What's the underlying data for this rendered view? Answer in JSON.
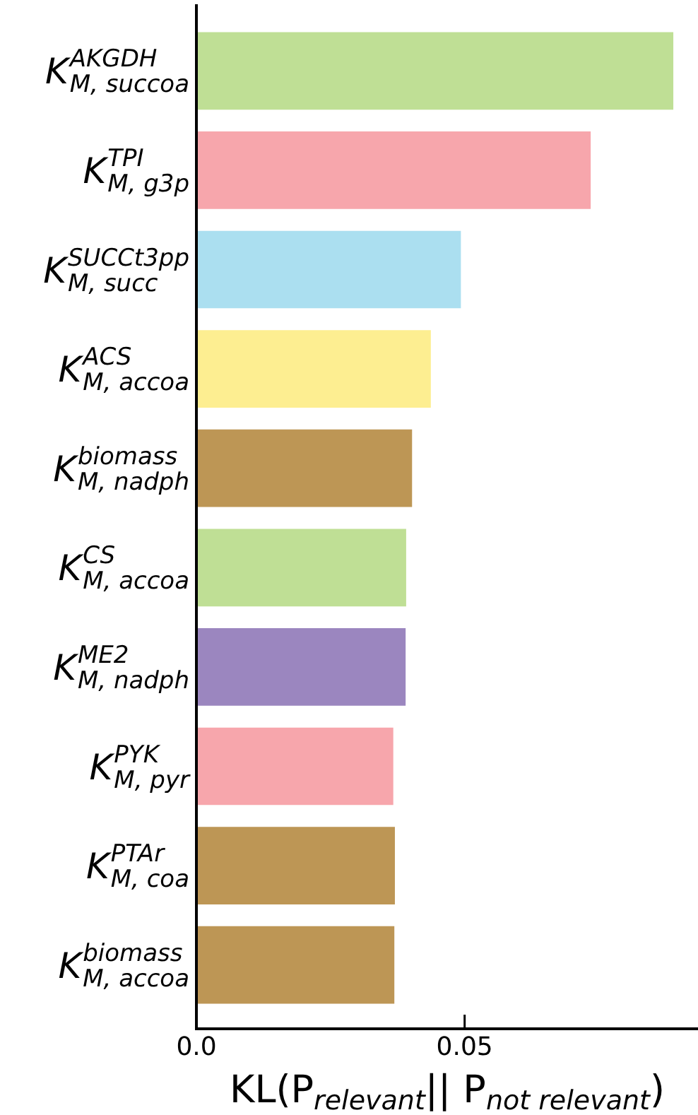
{
  "chart_data": {
    "type": "bar",
    "orientation": "horizontal",
    "xlabel": "KL(P$_{relevant}$|| P$_{not relevant}$)",
    "categories": [
      "K$^{AKGDH}$$_{M, succoa}$",
      "K$^{TPI}$$_{M, g3p}$",
      "K$^{SUCCt3pp}$$_{M, succ}$",
      "K$^{ACS}$$_{M, accoa}$",
      "K$^{biomass}$$_{M, nadph}$",
      "K$^{CS}$$_{M, accoa}$",
      "K$^{ME2}$$_{M, nadph}$",
      "K$^{PYK}$$_{M, pyr}$",
      "K$^{PTAr}$$_{M, coa}$",
      "K$^{biomass}$$_{M, accoa}$"
    ],
    "values": [
      0.0889,
      0.0735,
      0.0493,
      0.0437,
      0.0402,
      0.0391,
      0.039,
      0.0367,
      0.037,
      0.0369
    ],
    "colors": [
      "#bfdf95",
      "#f7a6ac",
      "#abdff0",
      "#fdee91",
      "#bd9655",
      "#bfdf95",
      "#9b86bf",
      "#f7a6ac",
      "#bd9655",
      "#bd9655"
    ],
    "xlim": [
      0,
      0.0935
    ],
    "xticks": [
      {
        "value": 0,
        "label": "0.0"
      },
      0.05
    ],
    "grid": false,
    "legend": false
  }
}
